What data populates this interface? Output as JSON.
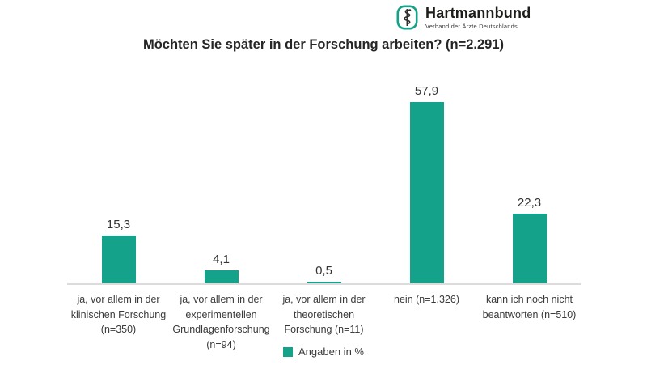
{
  "logo": {
    "name": "Hartmannbund",
    "subtitle": "Verband der Ärzte Deutschlands",
    "icon": "staff-of-aesculapius-icon"
  },
  "legend": {
    "label": "Angaben in %"
  },
  "colors": {
    "accent": "#14A38A",
    "axis": "#DCDCDC",
    "text_dark": "#333333"
  },
  "chart_data": {
    "type": "bar",
    "title": "Möchten Sie später in der Forschung arbeiten? (n=2.291)",
    "legend_entries": [
      "Angaben in %"
    ],
    "legend_position": "bottom-center",
    "grid": false,
    "value_axis_visible": false,
    "ylim": [
      0,
      62
    ],
    "categories": [
      "ja, vor allem in der klinischen Forschung (n=350)",
      "ja, vor allem in der experimentellen Grundlagenforschung (n=94)",
      "ja, vor allem in der theoretischen Forschung (n=11)",
      "nein (n=1.326)",
      "kann ich noch nicht beantworten (n=510)"
    ],
    "category_lines": [
      [
        "ja, vor allem in der",
        "klinischen Forschung",
        "(n=350)"
      ],
      [
        "ja, vor allem in der",
        "experimentellen",
        "Grundlagenforschung",
        "(n=94)"
      ],
      [
        "ja, vor allem in der",
        "theoretischen",
        "Forschung (n=11)"
      ],
      [
        "nein (n=1.326)"
      ],
      [
        "kann ich noch nicht",
        "beantworten (n=510)"
      ]
    ],
    "values": [
      15.3,
      4.1,
      0.5,
      57.9,
      22.3
    ],
    "value_labels": [
      "15,3",
      "4,1",
      "0,5",
      "57,9",
      "22,3"
    ],
    "bar_color": "#14A38A"
  }
}
